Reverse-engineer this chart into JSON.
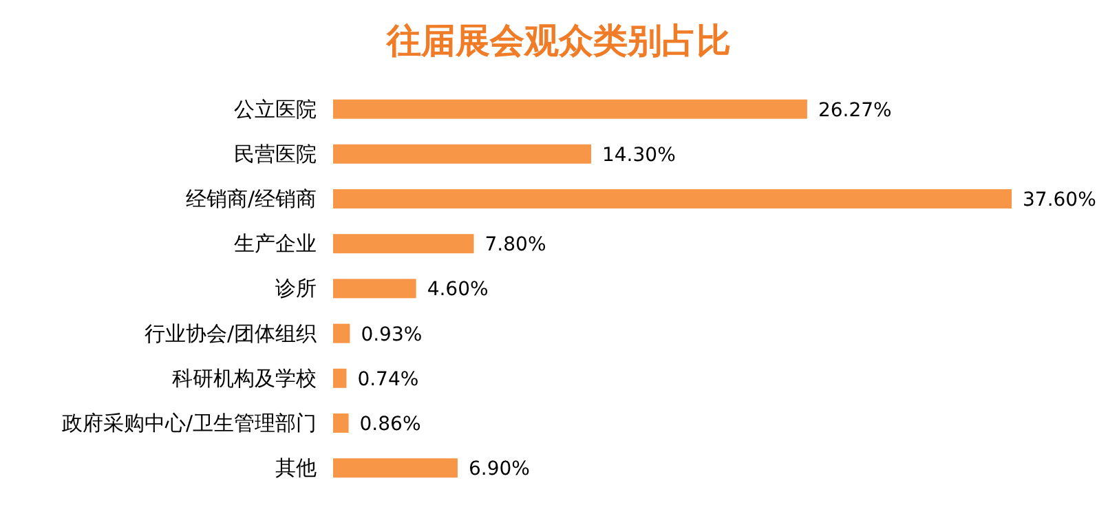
{
  "chart_data": {
    "type": "bar",
    "orientation": "horizontal",
    "title": "往届展会观众类别占比",
    "color": "#f79646",
    "categories": [
      "公立医院",
      "民营医院",
      "经销商/经销商",
      "生产企业",
      "诊所",
      "行业协会/团体组织",
      "科研机构及学校",
      "政府采购中心/卫生管理部门",
      "其他"
    ],
    "values": [
      26.27,
      14.3,
      37.6,
      7.8,
      4.6,
      0.93,
      0.74,
      0.86,
      6.9
    ],
    "value_labels": [
      "26.27%",
      "14.30%",
      "37.60%",
      "7.80%",
      "4.60%",
      "0.93%",
      "0.74%",
      "0.86%",
      "6.90%"
    ]
  }
}
